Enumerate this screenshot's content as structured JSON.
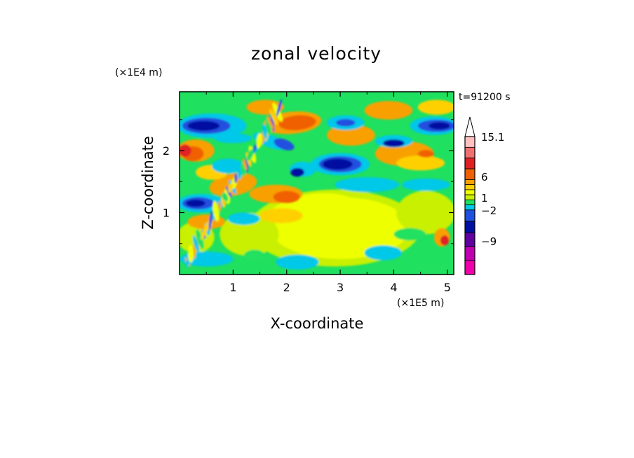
{
  "chart_data": {
    "type": "heatmap",
    "title": "zonal velocity",
    "xlabel": "X-coordinate",
    "ylabel": "Z-coordinate",
    "x_unit": "(×1E5 m)",
    "y_unit": "(×1E4 m)",
    "time_label": "t=91200 s",
    "xlim": [
      0,
      5.12
    ],
    "ylim": [
      0,
      2.95
    ],
    "x_ticks": [
      "1",
      "2",
      "3",
      "4",
      "5"
    ],
    "y_ticks": [
      "1",
      "2"
    ],
    "colorbar": {
      "labels": [
        "15.1",
        "6",
        "1",
        "−2",
        "−9"
      ],
      "colors": [
        "#ffc0c0",
        "#f07070",
        "#e02020",
        "#f06000",
        "#f8a000",
        "#ffd000",
        "#eeff00",
        "#c8f000",
        "#20e060",
        "#00c8e8",
        "#2050e0",
        "#0010a0",
        "#6000a0",
        "#c000b0",
        "#f000a8"
      ]
    },
    "features": [
      {
        "name": "blue-band-left-upper",
        "x": [
          0,
          1.3
        ],
        "z": [
          2.3,
          2.6
        ]
      },
      {
        "name": "blue-band-mid-upper",
        "x": [
          2.5,
          3.4
        ],
        "z": [
          1.7,
          1.9
        ]
      },
      {
        "name": "blue-band-right-upper",
        "x": [
          4.4,
          5.1
        ],
        "z": [
          2.3,
          2.5
        ]
      },
      {
        "name": "yellow-region-lower-center",
        "x": [
          1.8,
          4.2
        ],
        "z": [
          0.3,
          1.4
        ]
      }
    ]
  }
}
